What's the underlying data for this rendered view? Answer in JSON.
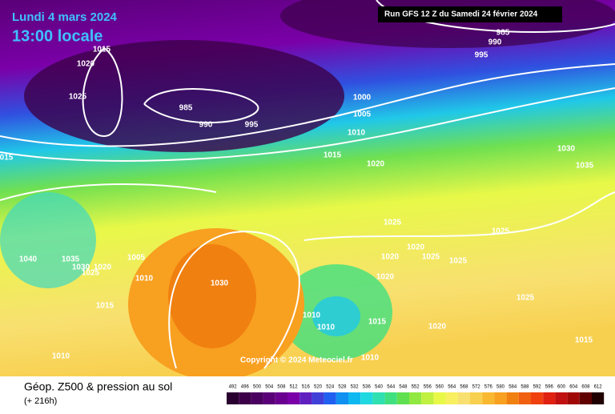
{
  "header": {
    "date": "Lundi 4 mars 2024",
    "time": "13:00 locale",
    "run": "Run GFS 12 Z du Samedi 24 février 2024"
  },
  "isobar_labels": [
    "1015",
    "1020",
    "1025",
    "985",
    "990",
    "995",
    "1000",
    "1005",
    "1010",
    "1015",
    "1020",
    "1030",
    "1035",
    "015",
    "985",
    "990",
    "995",
    "1025",
    "1025",
    "1020",
    "1025",
    "1025",
    "1020",
    "1020",
    "1040",
    "1035",
    "1030",
    "1020",
    "1025",
    "1005",
    "1010",
    "1030",
    "1015",
    "1010",
    "1010",
    "1015",
    "1020",
    "1025",
    "1010",
    "1010",
    "1015"
  ],
  "copyright": "Copyright © 2024 Meteociel.fr",
  "footer": {
    "title": "Géop. Z500 & pression au sol",
    "lead": "(+ 216h)"
  },
  "legend": {
    "levels": [
      492,
      496,
      500,
      504,
      508,
      512,
      516,
      520,
      524,
      528,
      532,
      536,
      540,
      544,
      548,
      552,
      556,
      560,
      564,
      568,
      572,
      576,
      580,
      584,
      588,
      592,
      596,
      600,
      604,
      608,
      612
    ],
    "colors": [
      "#2a0030",
      "#3c0048",
      "#4a0060",
      "#5a0078",
      "#6a0090",
      "#7a00a8",
      "#6020c0",
      "#4040d8",
      "#2060f0",
      "#1090f0",
      "#10b8f0",
      "#20d8e0",
      "#30e0b0",
      "#40e080",
      "#60e050",
      "#90e840",
      "#c0f040",
      "#e8f848",
      "#f8f060",
      "#f8e070",
      "#f8d050",
      "#f8b830",
      "#f8a020",
      "#f08010",
      "#f06010",
      "#f04010",
      "#e02010",
      "#c01010",
      "#a00808",
      "#600000",
      "#200000"
    ]
  }
}
